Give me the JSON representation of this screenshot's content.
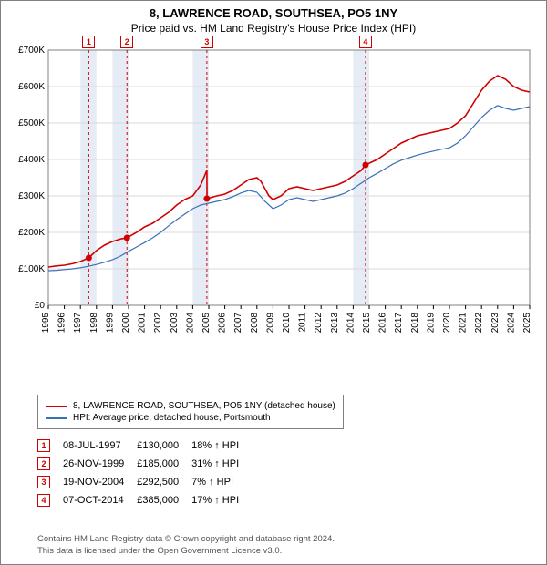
{
  "title": {
    "address": "8, LAWRENCE ROAD, SOUTHSEA, PO5 1NY",
    "subtitle": "Price paid vs. HM Land Registry's House Price Index (HPI)"
  },
  "chart": {
    "type": "line",
    "background_color": "#ffffff",
    "plot_border_color": "#808080",
    "grid_color": "#d9d9d9",
    "x": {
      "min": 1995,
      "max": 2025,
      "ticks": [
        1995,
        1996,
        1997,
        1998,
        1999,
        2000,
        2001,
        2002,
        2003,
        2004,
        2005,
        2006,
        2007,
        2008,
        2009,
        2010,
        2011,
        2012,
        2013,
        2014,
        2015,
        2016,
        2017,
        2018,
        2019,
        2020,
        2021,
        2022,
        2023,
        2024,
        2025
      ]
    },
    "y": {
      "min": 0,
      "max": 700000,
      "ticks": [
        0,
        100000,
        200000,
        300000,
        400000,
        500000,
        600000,
        700000
      ],
      "tick_labels": [
        "£0",
        "£100K",
        "£200K",
        "£300K",
        "£400K",
        "£500K",
        "£600K",
        "£700K"
      ],
      "label_fontsize": 10
    },
    "band_color": "#e6ecf5",
    "bands": [
      [
        1997,
        1998
      ],
      [
        1999,
        2000
      ],
      [
        2004,
        2005
      ],
      [
        2014,
        2015
      ]
    ],
    "series": [
      {
        "name": "8, LAWRENCE ROAD, SOUTHSEA, PO5 1NY (detached house)",
        "color": "#d00000",
        "line_width": 1.6,
        "data": [
          [
            1995.0,
            105000
          ],
          [
            1995.5,
            108000
          ],
          [
            1996.0,
            110000
          ],
          [
            1996.5,
            114000
          ],
          [
            1997.0,
            120000
          ],
          [
            1997.52,
            130000
          ],
          [
            1998.0,
            150000
          ],
          [
            1998.5,
            165000
          ],
          [
            1999.0,
            175000
          ],
          [
            1999.5,
            182000
          ],
          [
            1999.9,
            185000
          ],
          [
            2000.5,
            200000
          ],
          [
            2001.0,
            215000
          ],
          [
            2001.5,
            225000
          ],
          [
            2002.0,
            240000
          ],
          [
            2002.5,
            255000
          ],
          [
            2003.0,
            275000
          ],
          [
            2003.5,
            290000
          ],
          [
            2004.0,
            300000
          ],
          [
            2004.5,
            330000
          ],
          [
            2004.88,
            370000
          ],
          [
            2004.89,
            292500
          ],
          [
            2005.5,
            300000
          ],
          [
            2006.0,
            305000
          ],
          [
            2006.5,
            315000
          ],
          [
            2007.0,
            330000
          ],
          [
            2007.5,
            345000
          ],
          [
            2008.0,
            350000
          ],
          [
            2008.25,
            340000
          ],
          [
            2008.75,
            300000
          ],
          [
            2009.0,
            290000
          ],
          [
            2009.5,
            300000
          ],
          [
            2010.0,
            320000
          ],
          [
            2010.5,
            325000
          ],
          [
            2011.0,
            320000
          ],
          [
            2011.5,
            315000
          ],
          [
            2012.0,
            320000
          ],
          [
            2012.5,
            325000
          ],
          [
            2013.0,
            330000
          ],
          [
            2013.5,
            340000
          ],
          [
            2014.0,
            355000
          ],
          [
            2014.5,
            370000
          ],
          [
            2014.77,
            385000
          ],
          [
            2015.5,
            400000
          ],
          [
            2016.0,
            415000
          ],
          [
            2016.5,
            430000
          ],
          [
            2017.0,
            445000
          ],
          [
            2017.5,
            455000
          ],
          [
            2018.0,
            465000
          ],
          [
            2018.5,
            470000
          ],
          [
            2019.0,
            475000
          ],
          [
            2019.5,
            480000
          ],
          [
            2020.0,
            485000
          ],
          [
            2020.5,
            500000
          ],
          [
            2021.0,
            520000
          ],
          [
            2021.5,
            555000
          ],
          [
            2022.0,
            590000
          ],
          [
            2022.5,
            615000
          ],
          [
            2023.0,
            630000
          ],
          [
            2023.5,
            620000
          ],
          [
            2024.0,
            600000
          ],
          [
            2024.5,
            590000
          ],
          [
            2025.0,
            585000
          ]
        ]
      },
      {
        "name": "HPI: Average price, detached house, Portsmouth",
        "color": "#3b6fb6",
        "line_width": 1.2,
        "data": [
          [
            1995.0,
            95000
          ],
          [
            1995.5,
            96000
          ],
          [
            1996.0,
            98000
          ],
          [
            1996.5,
            100000
          ],
          [
            1997.0,
            103000
          ],
          [
            1997.5,
            107000
          ],
          [
            1998.0,
            112000
          ],
          [
            1998.5,
            118000
          ],
          [
            1999.0,
            125000
          ],
          [
            1999.5,
            135000
          ],
          [
            2000.0,
            148000
          ],
          [
            2000.5,
            160000
          ],
          [
            2001.0,
            172000
          ],
          [
            2001.5,
            185000
          ],
          [
            2002.0,
            200000
          ],
          [
            2002.5,
            218000
          ],
          [
            2003.0,
            235000
          ],
          [
            2003.5,
            250000
          ],
          [
            2004.0,
            265000
          ],
          [
            2004.5,
            275000
          ],
          [
            2005.0,
            280000
          ],
          [
            2005.5,
            285000
          ],
          [
            2006.0,
            290000
          ],
          [
            2006.5,
            298000
          ],
          [
            2007.0,
            308000
          ],
          [
            2007.5,
            315000
          ],
          [
            2008.0,
            310000
          ],
          [
            2008.5,
            285000
          ],
          [
            2009.0,
            265000
          ],
          [
            2009.5,
            275000
          ],
          [
            2010.0,
            290000
          ],
          [
            2010.5,
            295000
          ],
          [
            2011.0,
            290000
          ],
          [
            2011.5,
            285000
          ],
          [
            2012.0,
            290000
          ],
          [
            2012.5,
            295000
          ],
          [
            2013.0,
            300000
          ],
          [
            2013.5,
            308000
          ],
          [
            2014.0,
            320000
          ],
          [
            2014.5,
            335000
          ],
          [
            2015.0,
            350000
          ],
          [
            2015.5,
            362000
          ],
          [
            2016.0,
            375000
          ],
          [
            2016.5,
            388000
          ],
          [
            2017.0,
            398000
          ],
          [
            2017.5,
            405000
          ],
          [
            2018.0,
            412000
          ],
          [
            2018.5,
            418000
          ],
          [
            2019.0,
            423000
          ],
          [
            2019.5,
            428000
          ],
          [
            2020.0,
            432000
          ],
          [
            2020.5,
            445000
          ],
          [
            2021.0,
            465000
          ],
          [
            2021.5,
            490000
          ],
          [
            2022.0,
            515000
          ],
          [
            2022.5,
            535000
          ],
          [
            2023.0,
            548000
          ],
          [
            2023.5,
            540000
          ],
          [
            2024.0,
            535000
          ],
          [
            2024.5,
            540000
          ],
          [
            2025.0,
            545000
          ]
        ]
      }
    ],
    "transactions": {
      "label_color": "#d00000",
      "vline_dash": "3,3",
      "items": [
        {
          "n": "1",
          "year": 1997.52,
          "value": 130000
        },
        {
          "n": "2",
          "year": 1999.9,
          "value": 185000
        },
        {
          "n": "3",
          "year": 2004.88,
          "value": 292500
        },
        {
          "n": "4",
          "year": 2014.77,
          "value": 385000
        }
      ]
    }
  },
  "legend": {
    "items": [
      {
        "color": "#d00000",
        "label": "8, LAWRENCE ROAD, SOUTHSEA, PO5 1NY (detached house)"
      },
      {
        "color": "#3b6fb6",
        "label": "HPI: Average price, detached house, Portsmouth"
      }
    ]
  },
  "table": {
    "arrow": "↑",
    "hpi_label": "HPI",
    "rows": [
      {
        "n": "1",
        "date": "08-JUL-1997",
        "price": "£130,000",
        "pct": "18%"
      },
      {
        "n": "2",
        "date": "26-NOV-1999",
        "price": "£185,000",
        "pct": "31%"
      },
      {
        "n": "3",
        "date": "19-NOV-2004",
        "price": "£292,500",
        "pct": "7%"
      },
      {
        "n": "4",
        "date": "07-OCT-2014",
        "price": "£385,000",
        "pct": "17%"
      }
    ]
  },
  "footnote": {
    "line1": "Contains HM Land Registry data © Crown copyright and database right 2024.",
    "line2": "This data is licensed under the Open Government Licence v3.0."
  }
}
